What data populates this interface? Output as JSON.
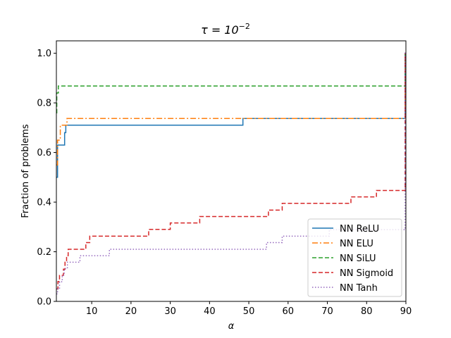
{
  "chart_data": {
    "type": "line",
    "step": true,
    "title_prefix": "τ = 10",
    "title_exponent": "−2",
    "xlabel": "α",
    "ylabel": "Fraction of problems",
    "xlim": [
      1,
      90
    ],
    "ylim": [
      0,
      1.05
    ],
    "x_ticks": [
      10,
      20,
      30,
      40,
      50,
      60,
      70,
      80,
      90
    ],
    "y_ticks": [
      0.0,
      0.2,
      0.4,
      0.6,
      0.8,
      1.0
    ],
    "x_tick_labels": [
      "10",
      "20",
      "30",
      "40",
      "50",
      "60",
      "70",
      "80",
      "90"
    ],
    "y_tick_labels": [
      "0.0",
      "0.2",
      "0.4",
      "0.6",
      "0.8",
      "1.0"
    ],
    "grid": false,
    "legend_position": "bottom-right",
    "series": [
      {
        "name": "NN ReLU",
        "color": "#1f77b4",
        "dash": "solid",
        "points": [
          [
            1,
            0.5
          ],
          [
            1.3,
            0.63
          ],
          [
            2.8,
            0.63
          ],
          [
            3.1,
            0.68
          ],
          [
            3.4,
            0.71
          ],
          [
            48.5,
            0.71
          ],
          [
            48.5,
            0.737
          ],
          [
            89.8,
            0.737
          ],
          [
            89.8,
            1.0
          ],
          [
            90,
            1.0
          ]
        ]
      },
      {
        "name": "NN ELU",
        "color": "#ff7f0e",
        "dash": "dashdot",
        "points": [
          [
            1,
            0.55
          ],
          [
            1.3,
            0.65
          ],
          [
            2.0,
            0.71
          ],
          [
            3.7,
            0.737
          ],
          [
            89.8,
            0.737
          ],
          [
            89.8,
            1.0
          ],
          [
            90,
            1.0
          ]
        ]
      },
      {
        "name": "NN SiLU",
        "color": "#2ca02c",
        "dash": "dashed",
        "points": [
          [
            1,
            0.76
          ],
          [
            1.1,
            0.84
          ],
          [
            1.5,
            0.868
          ],
          [
            89.8,
            0.868
          ],
          [
            89.8,
            1.0
          ],
          [
            90,
            1.0
          ]
        ]
      },
      {
        "name": "NN Sigmoid",
        "color": "#d62728",
        "dash": "dashed",
        "points": [
          [
            1,
            0.05
          ],
          [
            1.4,
            0.08
          ],
          [
            1.8,
            0.105
          ],
          [
            2.8,
            0.13
          ],
          [
            3.2,
            0.158
          ],
          [
            3.6,
            0.184
          ],
          [
            4.0,
            0.21
          ],
          [
            8.5,
            0.237
          ],
          [
            9.5,
            0.263
          ],
          [
            24.5,
            0.29
          ],
          [
            30.0,
            0.316
          ],
          [
            37.5,
            0.342
          ],
          [
            55.0,
            0.368
          ],
          [
            58.5,
            0.395
          ],
          [
            70.5,
            0.395
          ],
          [
            76.0,
            0.421
          ],
          [
            82.5,
            0.447
          ],
          [
            89.8,
            0.447
          ],
          [
            89.8,
            1.0
          ],
          [
            90,
            1.0
          ]
        ]
      },
      {
        "name": "NN Tanh",
        "color": "#9467bd",
        "dash": "dotted",
        "points": [
          [
            1,
            0.03
          ],
          [
            1.3,
            0.053
          ],
          [
            1.8,
            0.079
          ],
          [
            2.5,
            0.105
          ],
          [
            3.0,
            0.132
          ],
          [
            3.8,
            0.158
          ],
          [
            7.0,
            0.184
          ],
          [
            14.5,
            0.21
          ],
          [
            54.5,
            0.237
          ],
          [
            58.5,
            0.263
          ],
          [
            70.5,
            0.289
          ],
          [
            89.8,
            0.316
          ],
          [
            89.8,
            1.0
          ],
          [
            90,
            1.0
          ]
        ]
      }
    ]
  }
}
